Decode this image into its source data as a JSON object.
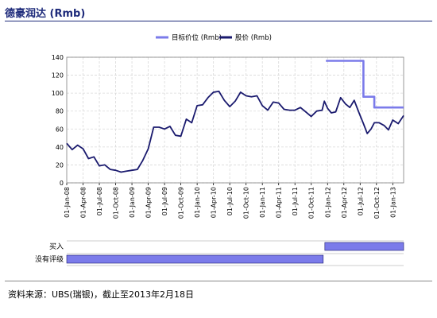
{
  "header": {
    "title": "德豪润达 (Rmb)"
  },
  "footer": {
    "source": "资料来源：UBS(瑞银)，截止至2013年2月18日"
  },
  "chart_data": {
    "type": "line",
    "ylim": [
      0,
      140
    ],
    "yticks": [
      0,
      20,
      40,
      60,
      80,
      100,
      120,
      140
    ],
    "x_tick_labels": [
      "01-Jan-08",
      "01-Apr-08",
      "01-Jul-08",
      "01-Oct-08",
      "01-Jan-09",
      "01-Apr-09",
      "01-Jul-09",
      "01-Oct-09",
      "01-Jan-10",
      "01-Apr-10",
      "01-Jul-10",
      "01-Oct-10",
      "01-Jan-11",
      "01-Apr-11",
      "01-Jul-11",
      "01-Oct-11",
      "01-Jan-12",
      "01-Apr-12",
      "01-Jul-12",
      "01-Oct-12",
      "01-Jan-13"
    ],
    "xlim_months": [
      0,
      62
    ],
    "legend": {
      "placement": "top-center"
    },
    "series": [
      {
        "name": "目标价位 (Rmb)",
        "color": "#7b7bea",
        "style": "step",
        "points": [
          [
            47.7,
            136
          ],
          [
            54.6,
            136
          ],
          [
            54.6,
            96
          ],
          [
            56.6,
            96
          ],
          [
            56.6,
            84
          ],
          [
            62,
            84
          ]
        ]
      },
      {
        "name": "股价 (Rmb)",
        "color": "#1a1a6e",
        "style": "line",
        "points": [
          [
            0,
            44
          ],
          [
            1,
            37
          ],
          [
            2,
            42
          ],
          [
            3,
            38
          ],
          [
            4,
            27
          ],
          [
            5,
            29
          ],
          [
            6,
            19
          ],
          [
            7,
            20
          ],
          [
            8,
            15
          ],
          [
            9,
            14
          ],
          [
            10,
            12
          ],
          [
            11,
            13
          ],
          [
            12,
            14
          ],
          [
            13,
            15
          ],
          [
            14,
            25
          ],
          [
            15,
            38
          ],
          [
            16,
            62
          ],
          [
            17,
            62
          ],
          [
            18,
            60
          ],
          [
            19,
            63
          ],
          [
            20,
            53
          ],
          [
            21,
            52
          ],
          [
            22,
            71
          ],
          [
            23,
            67
          ],
          [
            24,
            86
          ],
          [
            25,
            87
          ],
          [
            26,
            95
          ],
          [
            27,
            101
          ],
          [
            28,
            102
          ],
          [
            29,
            92
          ],
          [
            30,
            85
          ],
          [
            31,
            91
          ],
          [
            32,
            101
          ],
          [
            33,
            97
          ],
          [
            34,
            96
          ],
          [
            35,
            97
          ],
          [
            36,
            86
          ],
          [
            37,
            81
          ],
          [
            38,
            90
          ],
          [
            39,
            89
          ],
          [
            40,
            82
          ],
          [
            41,
            81
          ],
          [
            42,
            81
          ],
          [
            43,
            84
          ],
          [
            44,
            79
          ],
          [
            45,
            74
          ],
          [
            46,
            80
          ],
          [
            47,
            81
          ],
          [
            47.4,
            91
          ],
          [
            48,
            83
          ],
          [
            48.7,
            78
          ],
          [
            49.5,
            79
          ],
          [
            50.4,
            95
          ],
          [
            51.3,
            88
          ],
          [
            52.1,
            84
          ],
          [
            52.9,
            92
          ],
          [
            53.8,
            78
          ],
          [
            54.6,
            66
          ],
          [
            55.3,
            55
          ],
          [
            56,
            60
          ],
          [
            56.6,
            67
          ],
          [
            57.5,
            67
          ],
          [
            58.4,
            64
          ],
          [
            59.2,
            59
          ],
          [
            60,
            70
          ],
          [
            61,
            66
          ],
          [
            62,
            75
          ]
        ]
      }
    ],
    "ratings": [
      {
        "label": "买入",
        "color": "#7b7bea",
        "segments": [
          [
            47.5,
            62
          ]
        ]
      },
      {
        "label": "没有评级",
        "color": "#7b7bea",
        "segments": [
          [
            0,
            47.2
          ]
        ]
      }
    ]
  }
}
